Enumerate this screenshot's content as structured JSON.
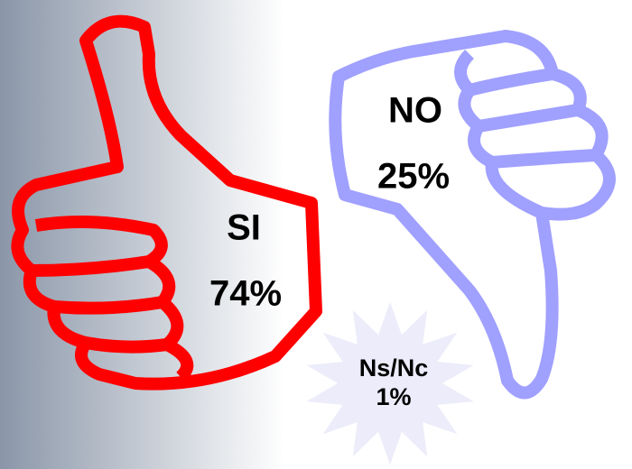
{
  "items": [
    {
      "label": "SI",
      "value": "74%"
    },
    {
      "label": "NO",
      "value": "25%"
    },
    {
      "label": "Ns/Nc",
      "value": "1%"
    }
  ]
}
